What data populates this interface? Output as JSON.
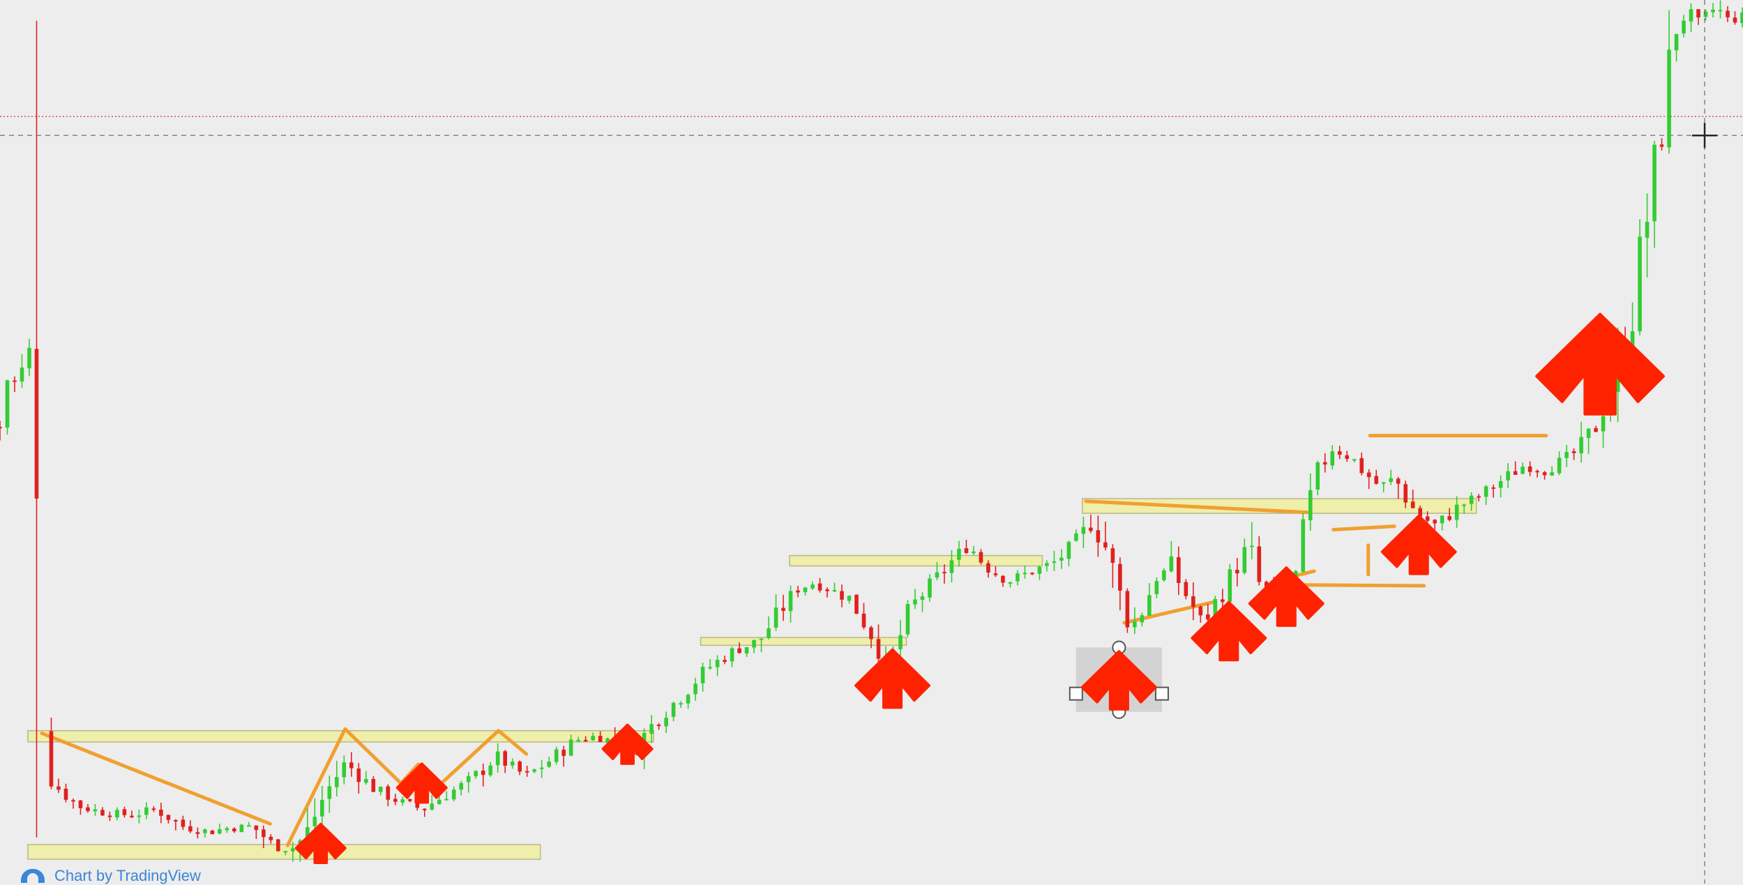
{
  "chart_data": {
    "type": "candlestick",
    "title": "",
    "xlabel": "",
    "ylabel": "",
    "ylim": [
      0,
      100
    ],
    "xlim": [
      0,
      100
    ],
    "grid": false,
    "x_step": 0.42,
    "note_values": "y values estimated on a relative 0-100 price scale (no axis printed); x on a relative 0-100 time scale",
    "path": [
      [
        0.0,
        50.5
      ],
      [
        0.4,
        56.0
      ],
      [
        1.1,
        55.5
      ],
      [
        1.6,
        59.5
      ],
      [
        2.1,
        58.0
      ],
      [
        2.6,
        10.5
      ],
      [
        3.4,
        8.5
      ],
      [
        4.6,
        6.5
      ],
      [
        6.0,
        5.8
      ],
      [
        7.5,
        5.5
      ],
      [
        9.0,
        6.2
      ],
      [
        10.5,
        4.2
      ],
      [
        12.0,
        3.6
      ],
      [
        13.0,
        4.0
      ],
      [
        14.5,
        4.2
      ],
      [
        15.8,
        1.8
      ],
      [
        16.7,
        1.6
      ],
      [
        17.5,
        3.0
      ],
      [
        18.6,
        7.8
      ],
      [
        19.8,
        11.6
      ],
      [
        21.5,
        8.5
      ],
      [
        23.0,
        7.0
      ],
      [
        24.2,
        6.2
      ],
      [
        25.5,
        7.8
      ],
      [
        27.0,
        9.5
      ],
      [
        28.5,
        12.3
      ],
      [
        29.4,
        11.0
      ],
      [
        30.2,
        10.0
      ],
      [
        31.5,
        11.8
      ],
      [
        33.0,
        14.2
      ],
      [
        34.5,
        14.8
      ],
      [
        35.8,
        12.6
      ],
      [
        36.5,
        13.5
      ],
      [
        37.5,
        16.2
      ],
      [
        39.0,
        19.2
      ],
      [
        40.5,
        22.4
      ],
      [
        42.0,
        24.5
      ],
      [
        43.5,
        25.6
      ],
      [
        44.5,
        28.5
      ],
      [
        45.8,
        31.8
      ],
      [
        46.8,
        32.5
      ],
      [
        47.8,
        31.5
      ],
      [
        48.8,
        30.5
      ],
      [
        49.5,
        28.2
      ],
      [
        50.3,
        25.5
      ],
      [
        51.0,
        22.5
      ],
      [
        52.2,
        29.5
      ],
      [
        53.6,
        32.6
      ],
      [
        54.8,
        35.4
      ],
      [
        55.6,
        36.8
      ],
      [
        56.5,
        34.5
      ],
      [
        57.8,
        32.6
      ],
      [
        59.0,
        33.6
      ],
      [
        60.5,
        34.8
      ],
      [
        61.8,
        37.2
      ],
      [
        62.6,
        39.5
      ],
      [
        63.4,
        36.8
      ],
      [
        64.2,
        31.2
      ],
      [
        64.8,
        26.8
      ],
      [
        65.4,
        28.8
      ],
      [
        66.3,
        33.0
      ],
      [
        67.2,
        34.2
      ],
      [
        68.2,
        30.5
      ],
      [
        69.0,
        27.8
      ],
      [
        70.0,
        31.0
      ],
      [
        71.0,
        34.6
      ],
      [
        71.6,
        36.8
      ],
      [
        72.2,
        32.5
      ],
      [
        73.5,
        30.0
      ],
      [
        74.5,
        33.0
      ],
      [
        75.4,
        44.5
      ],
      [
        76.4,
        48.0
      ],
      [
        77.4,
        47.2
      ],
      [
        78.4,
        45.0
      ],
      [
        79.2,
        43.5
      ],
      [
        80.0,
        44.6
      ],
      [
        81.2,
        40.6
      ],
      [
        82.4,
        39.0
      ],
      [
        83.6,
        41.2
      ],
      [
        85.0,
        42.6
      ],
      [
        86.2,
        44.4
      ],
      [
        87.4,
        46.0
      ],
      [
        88.6,
        45.5
      ],
      [
        89.6,
        46.5
      ],
      [
        90.6,
        47.8
      ],
      [
        91.5,
        50.5
      ],
      [
        92.2,
        54.0
      ],
      [
        93.0,
        58.2
      ],
      [
        93.6,
        63.5
      ],
      [
        94.2,
        71.5
      ],
      [
        94.8,
        78.2
      ],
      [
        95.4,
        86.8
      ],
      [
        96.0,
        96.0
      ],
      [
        96.8,
        98.5
      ],
      [
        97.6,
        97.0
      ],
      [
        98.4,
        99.2
      ],
      [
        99.2,
        97.6
      ],
      [
        100.0,
        98.2
      ]
    ],
    "gap": {
      "start": 2.3,
      "end": 2.55
    }
  },
  "annotations": {
    "zones": [
      {
        "x0": 1.6,
        "x1": 37.5,
        "y0": 15.3,
        "y1": 14.0
      },
      {
        "x0": 1.6,
        "x1": 31.0,
        "y0": 2.1,
        "y1": 0.4
      },
      {
        "x0": 40.2,
        "x1": 52.0,
        "y0": 26.1,
        "y1": 25.2
      },
      {
        "x0": 45.3,
        "x1": 59.8,
        "y0": 35.6,
        "y1": 34.4
      },
      {
        "x0": 62.1,
        "x1": 84.7,
        "y0": 42.2,
        "y1": 40.5
      }
    ],
    "orange_lines": [
      [
        [
          2.4,
          15.0
        ],
        [
          15.5,
          4.5
        ]
      ],
      [
        [
          16.5,
          2.0
        ],
        [
          19.8,
          15.5
        ],
        [
          23.0,
          9.2
        ]
      ],
      [
        [
          23.0,
          9.2
        ],
        [
          24.0,
          11.4
        ],
        [
          25.0,
          8.6
        ]
      ],
      [
        [
          25.0,
          8.6
        ],
        [
          28.6,
          15.3
        ],
        [
          30.2,
          12.6
        ]
      ],
      [
        [
          62.3,
          41.9
        ],
        [
          75.0,
          40.6
        ]
      ],
      [
        [
          64.5,
          27.8
        ],
        [
          69.6,
          30.2
        ]
      ],
      [
        [
          74.0,
          33.1
        ],
        [
          75.4,
          33.8
        ]
      ],
      [
        [
          74.0,
          32.2
        ],
        [
          81.7,
          32.1
        ]
      ],
      [
        [
          76.5,
          38.6
        ],
        [
          80.0,
          39.0
        ]
      ],
      [
        [
          78.5,
          36.8
        ],
        [
          78.5,
          33.4
        ]
      ],
      [
        [
          78.6,
          49.5
        ],
        [
          88.7,
          49.5
        ]
      ]
    ],
    "arrows": [
      {
        "x": 18.4,
        "y": 0.0,
        "scale": 1.0
      },
      {
        "x": 24.2,
        "y": 7.0,
        "scale": 1.0
      },
      {
        "x": 36.0,
        "y": 11.5,
        "scale": 1.0
      },
      {
        "x": 51.2,
        "y": 18.0,
        "scale": 1.5
      },
      {
        "x": 64.2,
        "y": 17.8,
        "scale": 1.5
      },
      {
        "x": 70.5,
        "y": 23.5,
        "scale": 1.5
      },
      {
        "x": 73.8,
        "y": 27.5,
        "scale": 1.5
      },
      {
        "x": 81.4,
        "y": 33.5,
        "scale": 1.5
      },
      {
        "x": 91.8,
        "y": 52.0,
        "scale": 2.6
      }
    ],
    "selected_arrow_index": 4,
    "horizontal_lines": [
      {
        "y": 86.5,
        "style": "dotted-red"
      },
      {
        "y": 84.3,
        "style": "dashed-gray"
      }
    ],
    "crosshair": {
      "x": 97.8,
      "y": 84.3
    }
  },
  "colors": {
    "background": "#ededed",
    "up_candle": "#33cc33",
    "down_candle": "#e02020",
    "zone_fill": "#efeeaa",
    "zone_stroke": "#b8b68a",
    "orange_line": "#f0a030",
    "arrow": "#ff2200",
    "selection_box": "#c9c9c9",
    "price_line": "#cc3333",
    "crosshair": "#555555",
    "brand": "#3a86d8"
  },
  "icons": {
    "brand": "tradingview-logo-icon"
  },
  "footer": {
    "brand_text": "Chart by TradingView"
  }
}
